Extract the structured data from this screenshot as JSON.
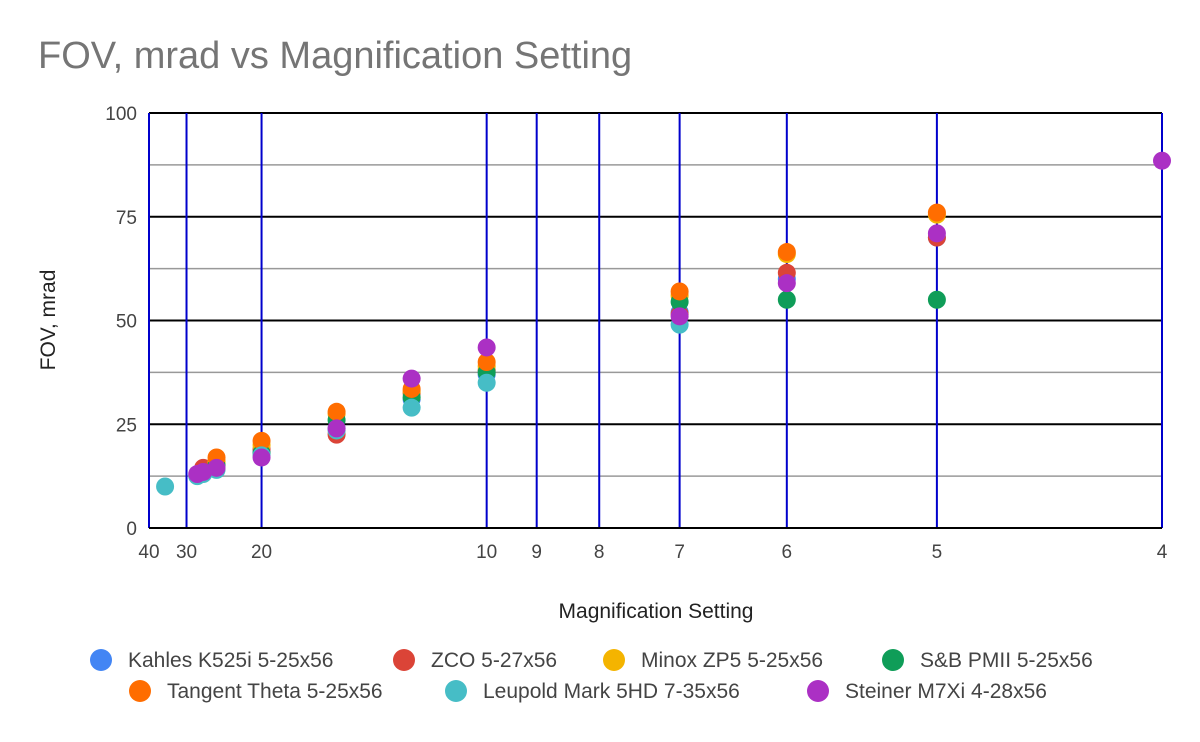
{
  "chart_data": {
    "type": "scatter",
    "title": "FOV, mrad vs Magnification Setting",
    "xlabel": "Magnification Setting",
    "ylabel": "FOV, mrad",
    "x_scale": "reciprocal",
    "xlim": [
      40,
      4
    ],
    "ylim": [
      0,
      100
    ],
    "x_ticks": [
      40,
      30,
      20,
      10,
      9,
      8,
      7,
      6,
      5,
      4
    ],
    "y_ticks": [
      0,
      25,
      50,
      75,
      100
    ],
    "y_minor_gridlines": [
      12.5,
      37.5,
      62.5,
      87.5
    ],
    "legend_position": "bottom",
    "series": [
      {
        "name": "Kahles K525i 5-25x56",
        "color": "#4285f4",
        "points": [
          [
            25,
            15.5
          ],
          [
            20,
            18.5
          ],
          [
            15,
            24
          ],
          [
            12,
            31
          ],
          [
            10,
            37
          ],
          [
            7,
            52
          ],
          [
            6,
            60
          ],
          [
            5,
            70
          ]
        ]
      },
      {
        "name": "ZCO 5-27x56",
        "color": "#db4437",
        "points": [
          [
            27,
            14.5
          ],
          [
            25,
            16
          ],
          [
            20,
            19
          ],
          [
            15,
            22.5
          ],
          [
            12,
            32.5
          ],
          [
            10,
            38
          ],
          [
            7,
            51.5
          ],
          [
            6,
            61.5
          ],
          [
            5,
            70
          ]
        ]
      },
      {
        "name": "Minox ZP5 5-25x56",
        "color": "#f4b400",
        "points": [
          [
            25,
            16
          ],
          [
            20,
            20
          ],
          [
            15,
            27.5
          ],
          [
            12,
            33
          ],
          [
            10,
            39
          ],
          [
            7,
            56
          ],
          [
            6,
            66
          ],
          [
            5,
            75.5
          ]
        ]
      },
      {
        "name": "S&B PMII 5-25x56",
        "color": "#0f9d58",
        "points": [
          [
            25,
            15
          ],
          [
            20,
            18
          ],
          [
            15,
            26
          ],
          [
            12,
            31.5
          ],
          [
            10,
            37.5
          ],
          [
            7,
            54.5
          ],
          [
            6,
            55
          ],
          [
            5,
            55
          ]
        ]
      },
      {
        "name": "Tangent Theta 5-25x56",
        "color": "#ff6d00",
        "points": [
          [
            25,
            17
          ],
          [
            20,
            21
          ],
          [
            15,
            28
          ],
          [
            12,
            33.5
          ],
          [
            10,
            40
          ],
          [
            7,
            57
          ],
          [
            6,
            66.5
          ],
          [
            5,
            76
          ]
        ]
      },
      {
        "name": "Leupold Mark 5HD 7-35x56",
        "color": "#46bdc6",
        "points": [
          [
            35,
            10
          ],
          [
            28,
            12.5
          ],
          [
            27,
            13
          ],
          [
            25,
            14
          ],
          [
            20,
            17.5
          ],
          [
            15,
            23.5
          ],
          [
            12,
            29
          ],
          [
            10,
            35
          ],
          [
            7,
            49
          ]
        ]
      },
      {
        "name": "Steiner M7Xi 4-28x56",
        "color": "#ab30c4",
        "points": [
          [
            28,
            13
          ],
          [
            27,
            13.5
          ],
          [
            25,
            14.5
          ],
          [
            20,
            17
          ],
          [
            15,
            24
          ],
          [
            12,
            36
          ],
          [
            10,
            43.5
          ],
          [
            7,
            51
          ],
          [
            6,
            59
          ],
          [
            5,
            71
          ],
          [
            4,
            88.5
          ]
        ]
      }
    ]
  }
}
